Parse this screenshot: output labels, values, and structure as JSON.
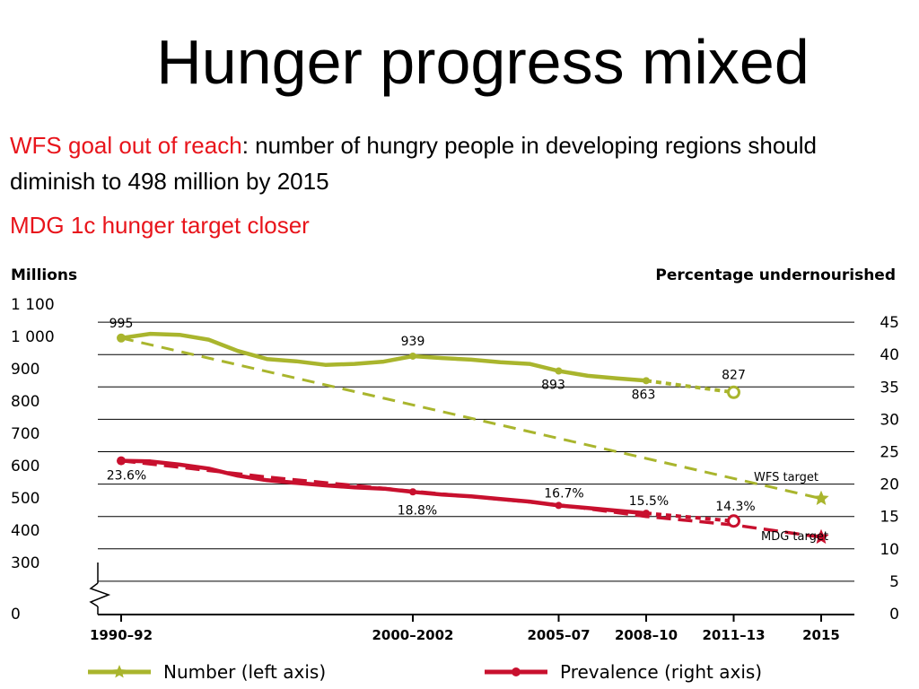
{
  "slide": {
    "title": "Hunger progress mixed",
    "bullet1_highlight": "WFS goal out of reach",
    "bullet1_rest": ": number of hungry people in developing regions should diminish to 498 million by 2015",
    "bullet2": "MDG 1c hunger target  closer"
  },
  "colors": {
    "number": "#a9b52d",
    "prevalence": "#c8102e",
    "highlight_text": "#e8141b"
  },
  "chart_data": {
    "type": "line",
    "left_axis_title": "Millions",
    "right_axis_title": "Percentage undernourished",
    "left_ticks": [
      {
        "label": "1 100",
        "value": 1100
      },
      {
        "label": "1 000",
        "value": 1000
      },
      {
        "label": "900",
        "value": 900
      },
      {
        "label": "800",
        "value": 800
      },
      {
        "label": "700",
        "value": 700
      },
      {
        "label": "600",
        "value": 600
      },
      {
        "label": "500",
        "value": 500
      },
      {
        "label": "400",
        "value": 400
      },
      {
        "label": "300",
        "value": 300
      },
      {
        "label": "0",
        "value": 0
      }
    ],
    "right_ticks": [
      {
        "label": "45",
        "value": 45
      },
      {
        "label": "40",
        "value": 40
      },
      {
        "label": "35",
        "value": 35
      },
      {
        "label": "30",
        "value": 30
      },
      {
        "label": "25",
        "value": 25
      },
      {
        "label": "20",
        "value": 20
      },
      {
        "label": "15",
        "value": 15
      },
      {
        "label": "10",
        "value": 10
      },
      {
        "label": "5",
        "value": 5
      },
      {
        "label": "0",
        "value": 0
      }
    ],
    "left_axis_break": "between 0 and 300",
    "x_labels": [
      {
        "label": "1990–92",
        "year": 1991
      },
      {
        "label": "2000–2002",
        "year": 2001
      },
      {
        "label": "2005–07",
        "year": 2006
      },
      {
        "label": "2008–10",
        "year": 2009
      },
      {
        "label": "2011–13",
        "year": 2012
      },
      {
        "label": "2015",
        "year": 2015
      }
    ],
    "series": [
      {
        "name": "Number (left axis)",
        "axis": "left",
        "points": [
          [
            1991,
            995
          ],
          [
            1992,
            1008
          ],
          [
            1993,
            1005
          ],
          [
            1994,
            990
          ],
          [
            1995,
            955
          ],
          [
            1996,
            930
          ],
          [
            1997,
            923
          ],
          [
            1998,
            912
          ],
          [
            1999,
            915
          ],
          [
            2000,
            922
          ],
          [
            2001,
            939
          ],
          [
            2002,
            933
          ],
          [
            2003,
            928
          ],
          [
            2004,
            920
          ],
          [
            2005,
            915
          ],
          [
            2006,
            893
          ],
          [
            2007,
            878
          ],
          [
            2008,
            870
          ],
          [
            2009,
            863
          ]
        ],
        "projection": [
          [
            2009,
            863
          ],
          [
            2012,
            827
          ]
        ],
        "target_line": [
          [
            1991,
            995
          ],
          [
            2015,
            498
          ]
        ],
        "target_point": [
          2015,
          498
        ],
        "point_labels": [
          {
            "text": "995",
            "x": 1991,
            "y": 995
          },
          {
            "text": "939",
            "x": 2001,
            "y": 939
          },
          {
            "text": "893",
            "x": 2006,
            "y": 893
          },
          {
            "text": "863",
            "x": 2009,
            "y": 863
          },
          {
            "text": "827",
            "x": 2012,
            "y": 827
          }
        ]
      },
      {
        "name": "Prevalence (right axis)",
        "axis": "right",
        "points": [
          [
            1991,
            23.6
          ],
          [
            1992,
            23.5
          ],
          [
            1993,
            23.0
          ],
          [
            1994,
            22.4
          ],
          [
            1995,
            21.3
          ],
          [
            1996,
            20.6
          ],
          [
            1997,
            20.2
          ],
          [
            1998,
            19.8
          ],
          [
            1999,
            19.5
          ],
          [
            2000,
            19.3
          ],
          [
            2001,
            18.8
          ],
          [
            2002,
            18.4
          ],
          [
            2003,
            18.1
          ],
          [
            2004,
            17.7
          ],
          [
            2005,
            17.3
          ],
          [
            2006,
            16.7
          ],
          [
            2007,
            16.3
          ],
          [
            2008,
            15.9
          ],
          [
            2009,
            15.5
          ]
        ],
        "projection": [
          [
            2009,
            15.5
          ],
          [
            2012,
            14.3
          ]
        ],
        "target_line": [
          [
            1991,
            23.6
          ],
          [
            1996,
            21.1
          ],
          [
            2001,
            18.9
          ],
          [
            2006,
            16.8
          ],
          [
            2009,
            15.0
          ],
          [
            2012,
            13.7
          ],
          [
            2015,
            11.8
          ]
        ],
        "target_point": [
          2015,
          11.8
        ],
        "point_labels": [
          {
            "text": "23.6%",
            "x": 1991,
            "y": 23.6
          },
          {
            "text": "18.8%",
            "x": 2001,
            "y": 18.8
          },
          {
            "text": "16.7%",
            "x": 2006,
            "y": 16.7
          },
          {
            "text": "15.5%",
            "x": 2009,
            "y": 15.5
          },
          {
            "text": "14.3%",
            "x": 2012,
            "y": 14.3
          }
        ]
      }
    ],
    "annotations": {
      "wfs_target": "WFS target",
      "mdg_target": "MDG target"
    },
    "legend": [
      {
        "label": "Number (left axis)",
        "color": "#a9b52d"
      },
      {
        "label": "Prevalence (right axis)",
        "color": "#c8102e"
      }
    ],
    "legend_position": "bottom",
    "grid": true
  }
}
